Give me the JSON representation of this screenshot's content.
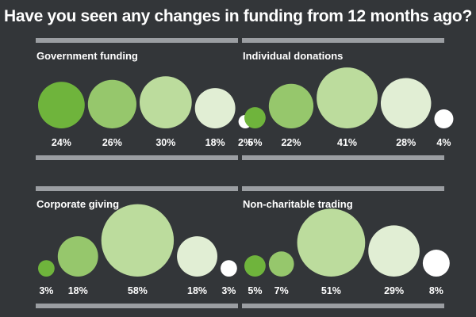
{
  "title": "Have you seen any changes in funding from 12 months ago?",
  "colors": [
    "#6fb43c",
    "#96c76c",
    "#bcdc9d",
    "#e1eed4",
    "#ffffff"
  ],
  "chart_data": [
    {
      "type": "bubble",
      "title": "Government funding",
      "labels": [
        "24%",
        "26%",
        "30%",
        "18%",
        "2%"
      ],
      "values": [
        24,
        26,
        30,
        18,
        2
      ]
    },
    {
      "type": "bubble",
      "title": "Individual donations",
      "labels": [
        "5%",
        "22%",
        "41%",
        "28%",
        "4%"
      ],
      "values": [
        5,
        22,
        41,
        28,
        4
      ]
    },
    {
      "type": "bubble",
      "title": "Corporate giving",
      "labels": [
        "3%",
        "18%",
        "58%",
        "18%",
        "3%"
      ],
      "values": [
        3,
        18,
        58,
        18,
        3
      ]
    },
    {
      "type": "bubble",
      "title": "Non-charitable trading",
      "labels": [
        "5%",
        "7%",
        "51%",
        "29%",
        "8%"
      ],
      "values": [
        5,
        7,
        51,
        29,
        8
      ]
    }
  ]
}
